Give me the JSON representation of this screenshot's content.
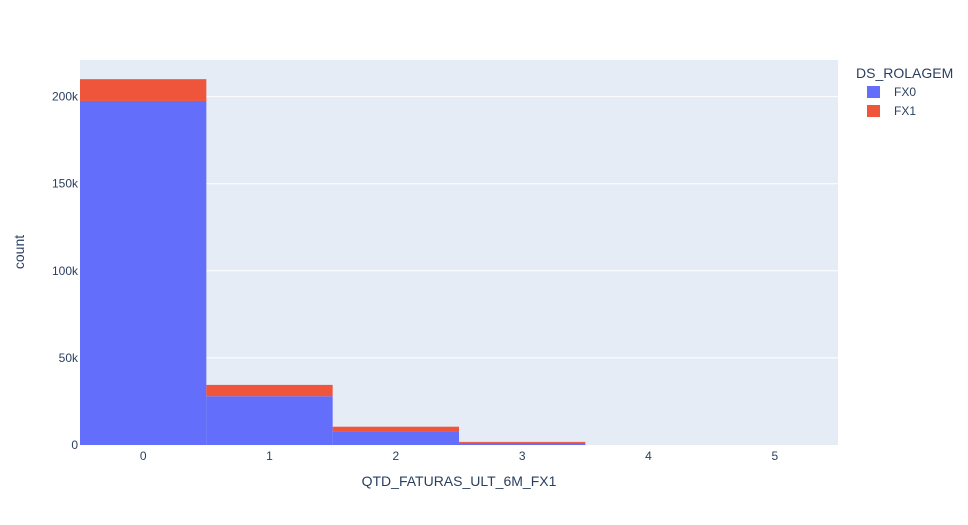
{
  "colors": {
    "plot_bg": "#e5ecf6",
    "grid": "#ffffff",
    "text": "#2a3f5f"
  },
  "chart_data": {
    "type": "bar",
    "barmode": "stack",
    "xlabel": "QTD_FATURAS_ULT_6M_FX1",
    "ylabel": "count",
    "x": [
      0,
      1,
      2,
      3,
      4,
      5
    ],
    "x_tick_labels": [
      "0",
      "1",
      "2",
      "3",
      "4",
      "5"
    ],
    "ylim": [
      0,
      221000
    ],
    "y_ticks": [
      0,
      50000,
      100000,
      150000,
      200000
    ],
    "y_tick_labels": [
      "0",
      "50k",
      "100k",
      "150k",
      "200k"
    ],
    "grid": true,
    "legend": {
      "title": "DS_ROLAGEM",
      "position": "top-right"
    },
    "series": [
      {
        "name": "FX0",
        "color": "#636efa",
        "values": [
          197500,
          28000,
          7500,
          1200,
          0,
          0
        ]
      },
      {
        "name": "FX1",
        "color": "#ef553b",
        "values": [
          12500,
          6500,
          3000,
          600,
          0,
          0
        ]
      }
    ]
  }
}
